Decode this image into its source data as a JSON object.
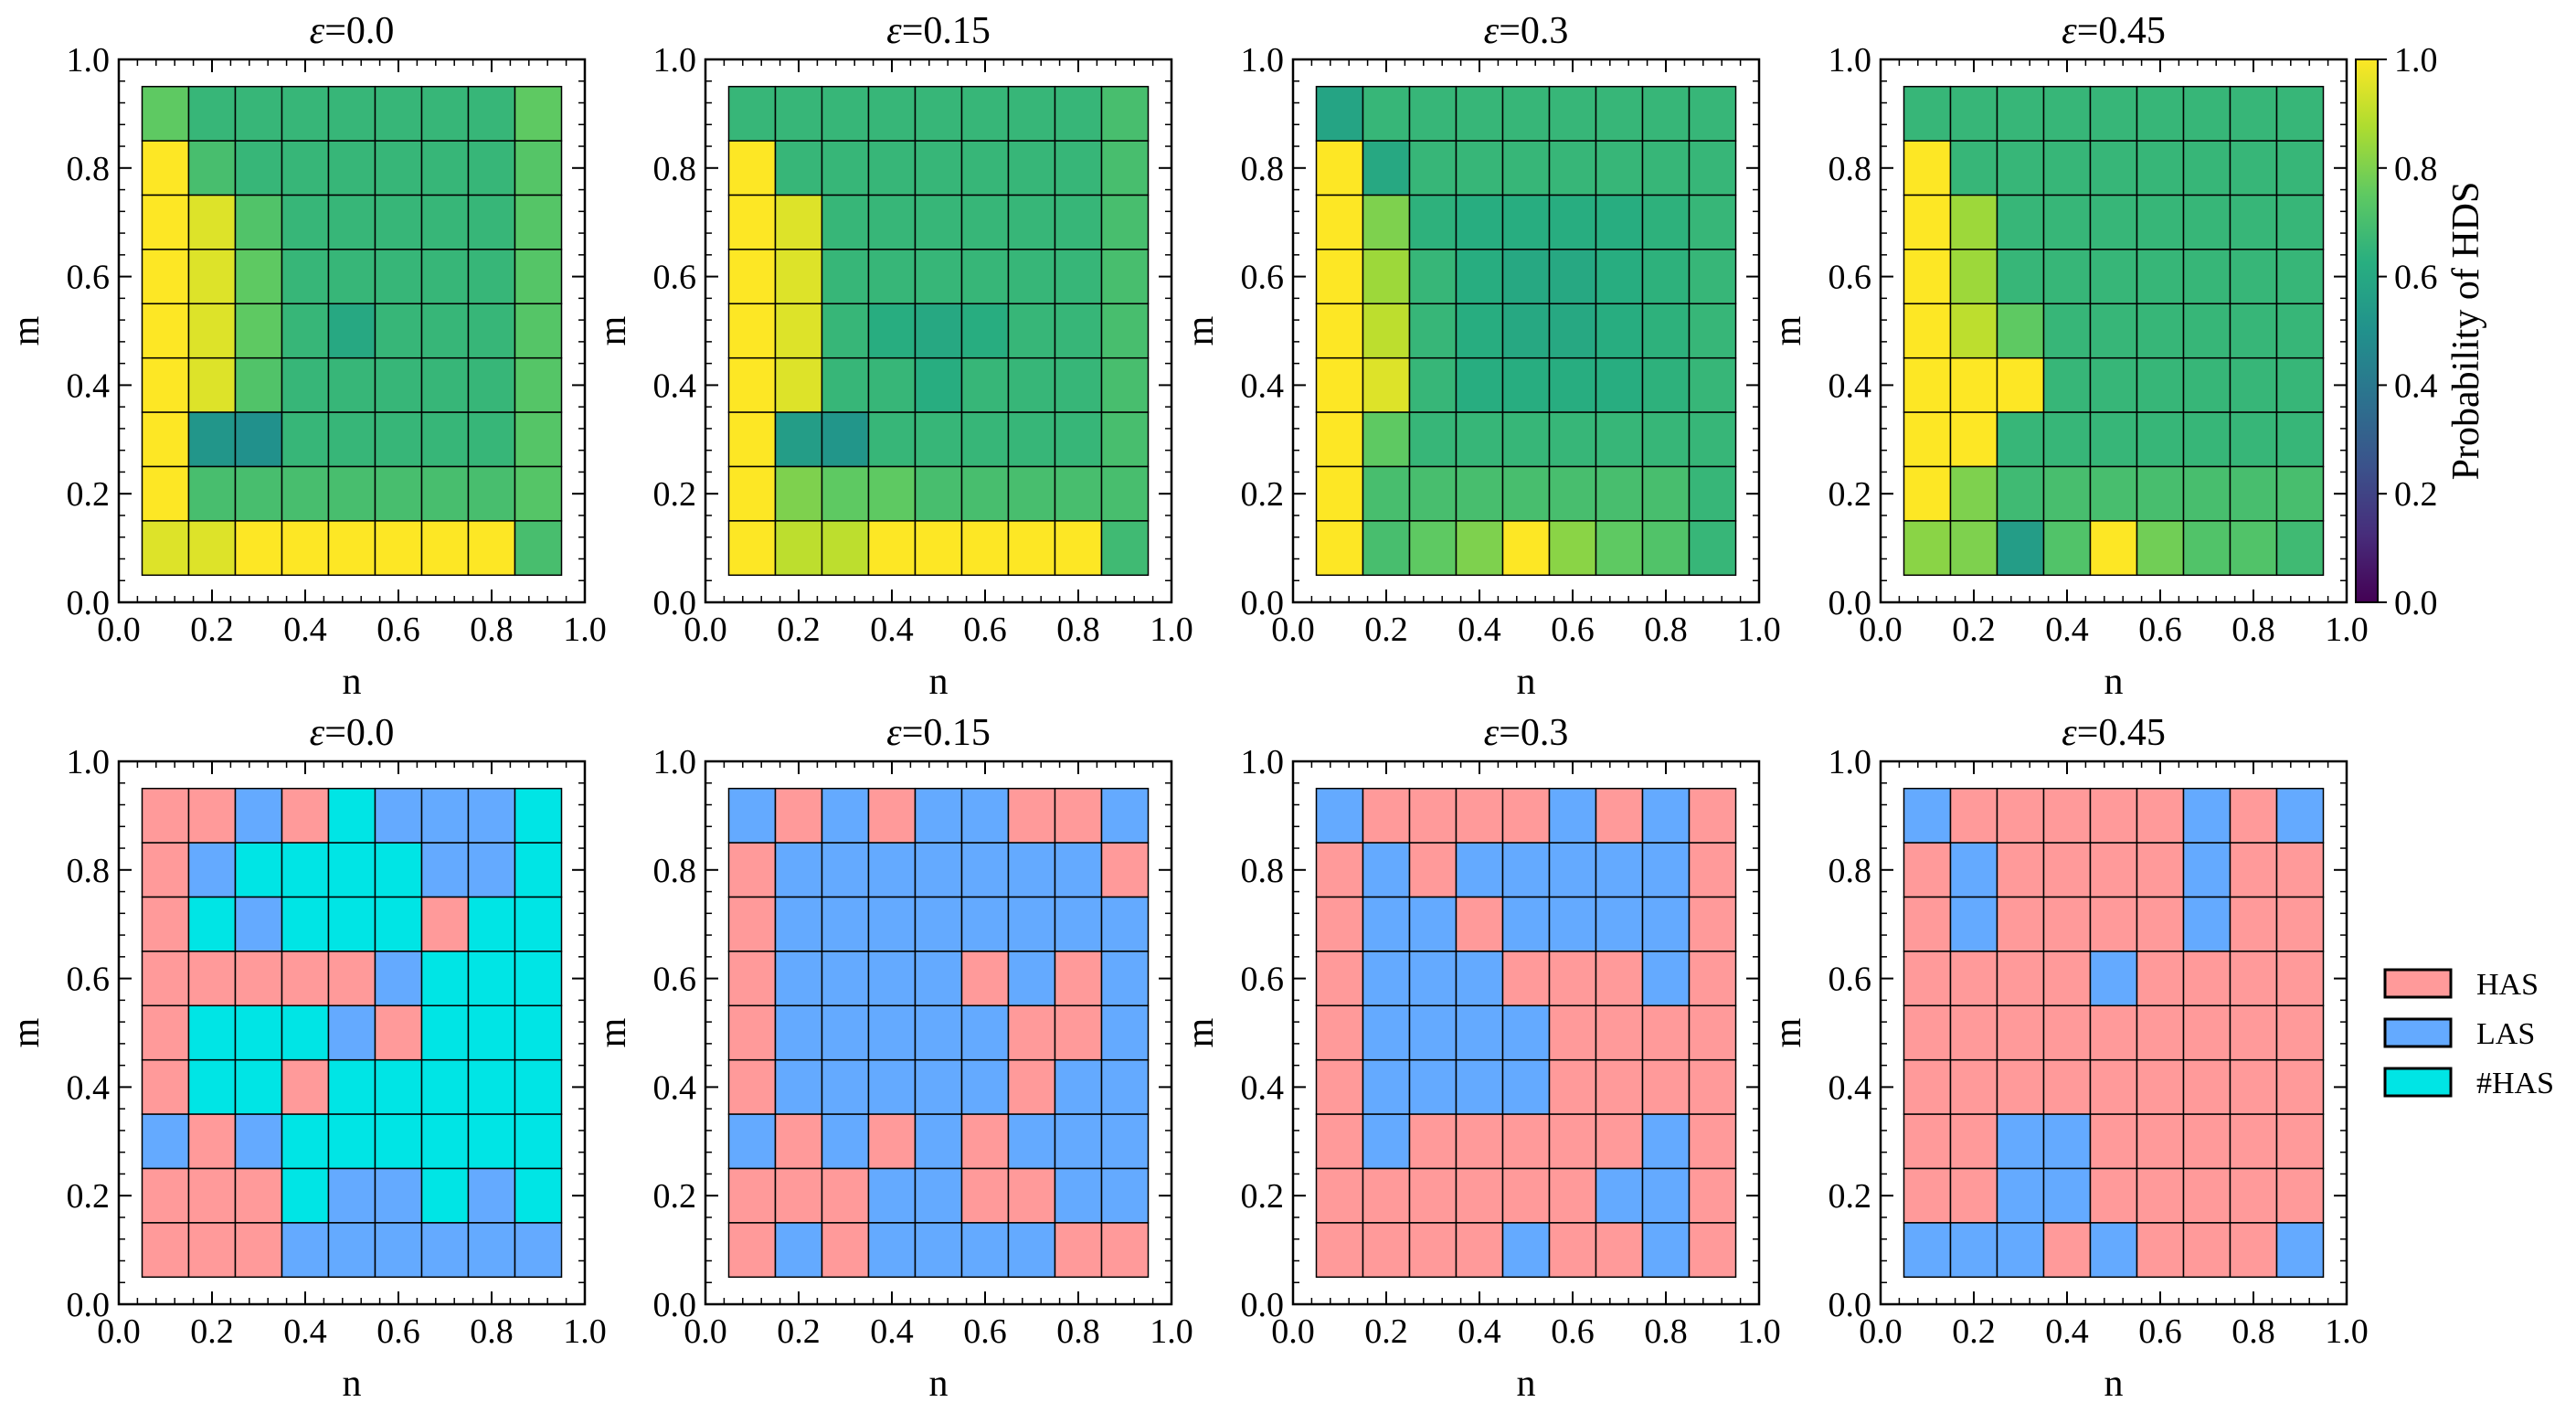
{
  "chart_data": {
    "type": "heatmap",
    "axis_ticks": [
      "0.0",
      "0.2",
      "0.4",
      "0.6",
      "0.8",
      "1.0"
    ],
    "grid_centers": [
      0.1,
      0.2,
      0.3,
      0.4,
      0.5,
      0.6,
      0.7,
      0.8,
      0.9
    ],
    "epsilon_symbol": "ε",
    "top_row": {
      "xlabel": "n",
      "ylabel": "m",
      "zlim": [
        0,
        1
      ],
      "colorbar_label": "Probability of HDS",
      "colorbar_ticks": [
        "0.0",
        "0.2",
        "0.4",
        "0.6",
        "0.8",
        "1.0"
      ],
      "panels": [
        {
          "title": "=0.0",
          "values": [
            [
              0.75,
              0.66,
              0.66,
              0.66,
              0.66,
              0.66,
              0.66,
              0.66,
              0.75
            ],
            [
              1.0,
              0.7,
              0.66,
              0.66,
              0.66,
              0.66,
              0.66,
              0.66,
              0.73
            ],
            [
              1.0,
              0.95,
              0.72,
              0.66,
              0.66,
              0.66,
              0.66,
              0.66,
              0.73
            ],
            [
              1.0,
              0.95,
              0.75,
              0.66,
              0.66,
              0.66,
              0.66,
              0.66,
              0.73
            ],
            [
              1.0,
              0.95,
              0.75,
              0.66,
              0.6,
              0.66,
              0.66,
              0.66,
              0.73
            ],
            [
              1.0,
              0.95,
              0.72,
              0.66,
              0.66,
              0.66,
              0.66,
              0.66,
              0.73
            ],
            [
              1.0,
              0.52,
              0.5,
              0.66,
              0.66,
              0.66,
              0.66,
              0.66,
              0.73
            ],
            [
              1.0,
              0.7,
              0.7,
              0.7,
              0.7,
              0.7,
              0.7,
              0.7,
              0.73
            ],
            [
              0.95,
              0.95,
              1.0,
              1.0,
              1.0,
              1.0,
              1.0,
              1.0,
              0.7
            ]
          ]
        },
        {
          "title": "=0.15",
          "values": [
            [
              0.66,
              0.66,
              0.66,
              0.66,
              0.66,
              0.66,
              0.66,
              0.66,
              0.7
            ],
            [
              1.0,
              0.66,
              0.66,
              0.66,
              0.66,
              0.66,
              0.66,
              0.66,
              0.7
            ],
            [
              1.0,
              0.95,
              0.66,
              0.66,
              0.66,
              0.66,
              0.66,
              0.66,
              0.7
            ],
            [
              1.0,
              0.95,
              0.66,
              0.66,
              0.66,
              0.66,
              0.66,
              0.66,
              0.7
            ],
            [
              1.0,
              0.95,
              0.66,
              0.62,
              0.6,
              0.62,
              0.66,
              0.66,
              0.7
            ],
            [
              1.0,
              0.95,
              0.66,
              0.66,
              0.62,
              0.66,
              0.66,
              0.66,
              0.7
            ],
            [
              1.0,
              0.55,
              0.52,
              0.66,
              0.66,
              0.66,
              0.66,
              0.66,
              0.7
            ],
            [
              1.0,
              0.8,
              0.75,
              0.75,
              0.7,
              0.7,
              0.7,
              0.7,
              0.7
            ],
            [
              1.0,
              0.9,
              0.9,
              1.0,
              1.0,
              1.0,
              1.0,
              1.0,
              0.68
            ]
          ]
        },
        {
          "title": "=0.3",
          "values": [
            [
              0.58,
              0.66,
              0.66,
              0.66,
              0.66,
              0.66,
              0.66,
              0.66,
              0.66
            ],
            [
              1.0,
              0.6,
              0.66,
              0.66,
              0.66,
              0.66,
              0.66,
              0.66,
              0.66
            ],
            [
              1.0,
              0.8,
              0.64,
              0.62,
              0.62,
              0.62,
              0.62,
              0.64,
              0.66
            ],
            [
              1.0,
              0.85,
              0.66,
              0.62,
              0.6,
              0.6,
              0.62,
              0.64,
              0.66
            ],
            [
              1.0,
              0.9,
              0.66,
              0.62,
              0.6,
              0.6,
              0.62,
              0.64,
              0.66
            ],
            [
              1.0,
              0.95,
              0.66,
              0.62,
              0.62,
              0.62,
              0.62,
              0.64,
              0.66
            ],
            [
              1.0,
              0.75,
              0.66,
              0.66,
              0.66,
              0.66,
              0.66,
              0.66,
              0.66
            ],
            [
              1.0,
              0.7,
              0.7,
              0.7,
              0.7,
              0.7,
              0.7,
              0.7,
              0.66
            ],
            [
              1.0,
              0.7,
              0.75,
              0.8,
              1.0,
              0.82,
              0.75,
              0.72,
              0.66
            ]
          ]
        },
        {
          "title": "=0.45",
          "values": [
            [
              0.66,
              0.66,
              0.66,
              0.66,
              0.66,
              0.66,
              0.66,
              0.66,
              0.66
            ],
            [
              1.0,
              0.66,
              0.66,
              0.66,
              0.66,
              0.66,
              0.66,
              0.66,
              0.66
            ],
            [
              1.0,
              0.85,
              0.66,
              0.66,
              0.66,
              0.66,
              0.66,
              0.66,
              0.66
            ],
            [
              1.0,
              0.85,
              0.66,
              0.66,
              0.66,
              0.66,
              0.66,
              0.66,
              0.66
            ],
            [
              1.0,
              0.9,
              0.75,
              0.66,
              0.66,
              0.66,
              0.66,
              0.66,
              0.66
            ],
            [
              1.0,
              1.0,
              1.0,
              0.66,
              0.66,
              0.66,
              0.66,
              0.66,
              0.66
            ],
            [
              1.0,
              1.0,
              0.66,
              0.66,
              0.66,
              0.66,
              0.66,
              0.66,
              0.66
            ],
            [
              1.0,
              0.8,
              0.68,
              0.7,
              0.7,
              0.7,
              0.7,
              0.7,
              0.7
            ],
            [
              0.82,
              0.8,
              0.55,
              0.72,
              1.0,
              0.78,
              0.72,
              0.72,
              0.68
            ]
          ]
        }
      ]
    },
    "bottom_row": {
      "xlabel": "n",
      "ylabel": "m",
      "legend": [
        {
          "key": "H",
          "label": "HAS",
          "color": "#ff9a9a"
        },
        {
          "key": "L",
          "label": "LAS",
          "color": "#64aaff"
        },
        {
          "key": "C",
          "label": "#HAS",
          "color": "#00e5e5"
        }
      ],
      "panels": [
        {
          "title": "=0.0",
          "rows": [
            "HHLHCLLLC",
            "HLCCCCLLC",
            "HCLCCCHCC",
            "HHHHHLCCC",
            "HCCCLHCCC",
            "HCCHCCCCC",
            "LHLCCCCCC",
            "HHHCLLCLC",
            "HHHLLLLLL"
          ]
        },
        {
          "title": "=0.15",
          "rows": [
            "LHLHLLHHL",
            "HLLLLLLLH",
            "HLLLLLLLL",
            "HLLLLHLHL",
            "HLLLLLHHL",
            "HLLLLLHLL",
            "LHLHLHLLL",
            "HHHLLHHLL",
            "HLHLLLLHH"
          ]
        },
        {
          "title": "=0.3",
          "rows": [
            "LHHHHLHLH",
            "HLHLLLLLH",
            "HLLHLLLLH",
            "HLLLHHHLH",
            "HLLLLHHHH",
            "HLLLLHHHH",
            "HLHHHHHLH",
            "HHHHHHLLH",
            "HHHHLHHLH"
          ]
        },
        {
          "title": "=0.45",
          "rows": [
            "LHHHHHLHL",
            "HLHHHHLHH",
            "HLHHHHLHH",
            "HHHHLHHHH",
            "HHHHHHHHH",
            "HHHHHHHHH",
            "HHLLHHHHH",
            "HHLLHHHHH",
            "LLLHLHHHL"
          ]
        }
      ]
    }
  }
}
